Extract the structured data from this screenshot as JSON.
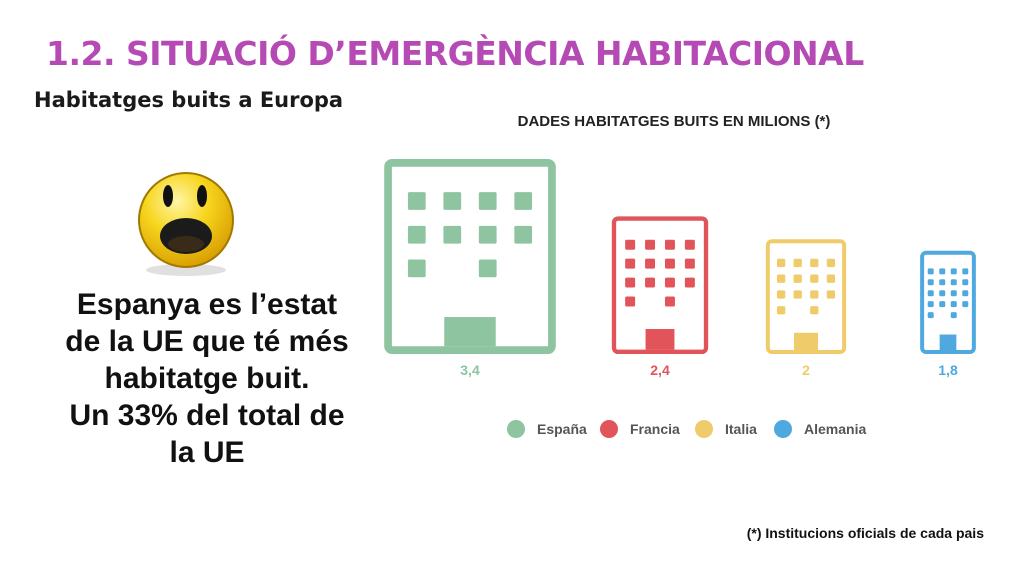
{
  "header": {
    "title": "1.2. SITUACIÓ D’EMERGÈNCIA HABITACIONAL",
    "subtitle": "Habitatges buits a Europa",
    "title_color": "#b64ab4"
  },
  "statement": {
    "lines": [
      "Espanya es l’estat",
      "de la UE que té més",
      "habitatge buit.",
      "Un 33% del total de",
      "la UE"
    ]
  },
  "chart_data": {
    "type": "bar",
    "title": "DADES HABITATGES BUITS EN MILIONS (*)",
    "categories": [
      "España",
      "Francia",
      "Italia",
      "Alemania"
    ],
    "values": [
      3.4,
      2.4,
      2,
      1.8
    ],
    "value_labels": [
      "3,4",
      "2,4",
      "2",
      "1,8"
    ],
    "colors": [
      "#8fc4a1",
      "#e0545a",
      "#f0cb6a",
      "#4fa9df"
    ],
    "legend": "bottom",
    "grid": false
  },
  "footnote": "(*) Institucions oficials de cada pais",
  "icons": {
    "face": "shocked-face-icon"
  }
}
